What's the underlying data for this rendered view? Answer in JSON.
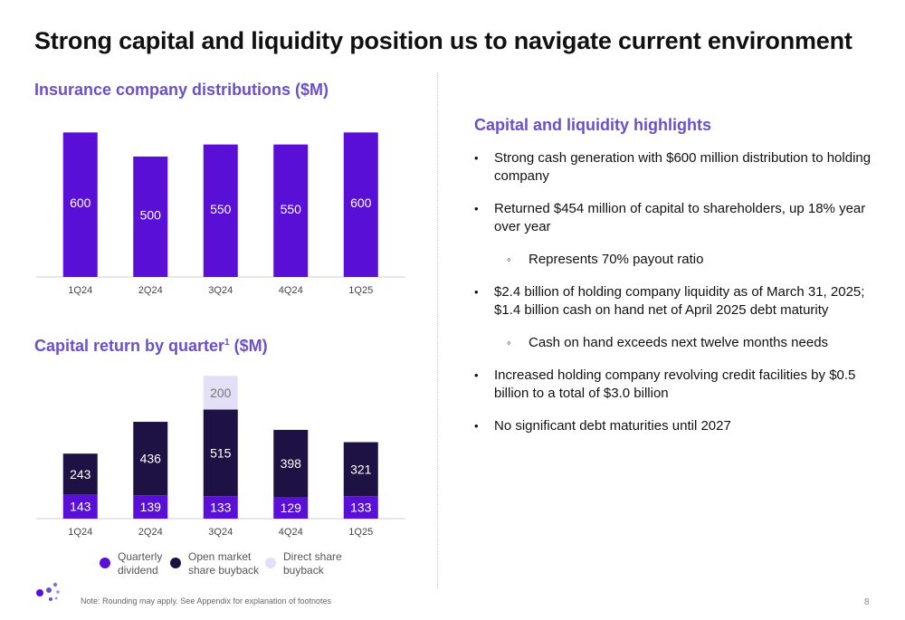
{
  "title": "Strong capital and liquidity position us to navigate current environment",
  "colors": {
    "accent": "#6b4fc9",
    "bar_primary": "#5a0fd6",
    "bar_dark": "#1e1245",
    "bar_light": "#e2dff7"
  },
  "chart1": {
    "title": "Insurance company distributions ($M)"
  },
  "chart2": {
    "title_main": "Capital return by quarter",
    "title_sup": "1",
    "title_tail": " ($M)"
  },
  "chart_data": [
    {
      "type": "bar",
      "title": "Insurance company distributions ($M)",
      "categories": [
        "1Q24",
        "2Q24",
        "3Q24",
        "4Q24",
        "1Q25"
      ],
      "values": [
        600,
        500,
        550,
        550,
        600
      ],
      "labels": [
        "600",
        "500",
        "550",
        "550",
        "600"
      ],
      "ylim": [
        0,
        620
      ],
      "grid": false
    },
    {
      "type": "bar",
      "stacked": true,
      "title": "Capital return by quarter ($M)",
      "categories": [
        "1Q24",
        "2Q24",
        "3Q24",
        "4Q24",
        "1Q25"
      ],
      "series": [
        {
          "name": "Quarterly dividend",
          "color": "#5a0fd6",
          "values": [
            143,
            139,
            133,
            129,
            133
          ]
        },
        {
          "name": "Open market share buyback",
          "color": "#1e1245",
          "values": [
            243,
            436,
            515,
            398,
            321
          ]
        },
        {
          "name": "Direct share buyback",
          "color": "#e2dff7",
          "values": [
            0,
            0,
            200,
            0,
            0
          ]
        }
      ],
      "ylim": [
        0,
        860
      ],
      "grid": false,
      "legend": "bottom"
    }
  ],
  "legend": [
    {
      "line1": "Quarterly",
      "line2": "dividend",
      "color": "#5a0fd6"
    },
    {
      "line1": "Open market",
      "line2": "share buyback",
      "color": "#1e1245"
    },
    {
      "line1": "Direct share",
      "line2": "buyback",
      "color": "#e2dff7"
    }
  ],
  "highlights": {
    "title": "Capital and liquidity highlights",
    "items": [
      {
        "text": "Strong cash generation with $600 million distribution to holding company",
        "level": 1
      },
      {
        "text": "Returned $454 million of capital to shareholders, up 18% year over year",
        "level": 1
      },
      {
        "text": "Represents 70% payout ratio",
        "level": 2
      },
      {
        "text": "$2.4 billion of holding company liquidity as of March 31, 2025; $1.4 billion cash on hand net of April 2025 debt maturity",
        "level": 1
      },
      {
        "text": "Cash on hand exceeds next twelve months needs",
        "level": 2
      },
      {
        "text": "Increased holding company revolving credit facilities by $0.5 billion to a total of $3.0 billion",
        "level": 1
      },
      {
        "text": "No significant debt maturities until 2027",
        "level": 1
      }
    ]
  },
  "footer": {
    "note": "Note: Rounding may apply. See Appendix for explanation of footnotes",
    "page": "8"
  }
}
